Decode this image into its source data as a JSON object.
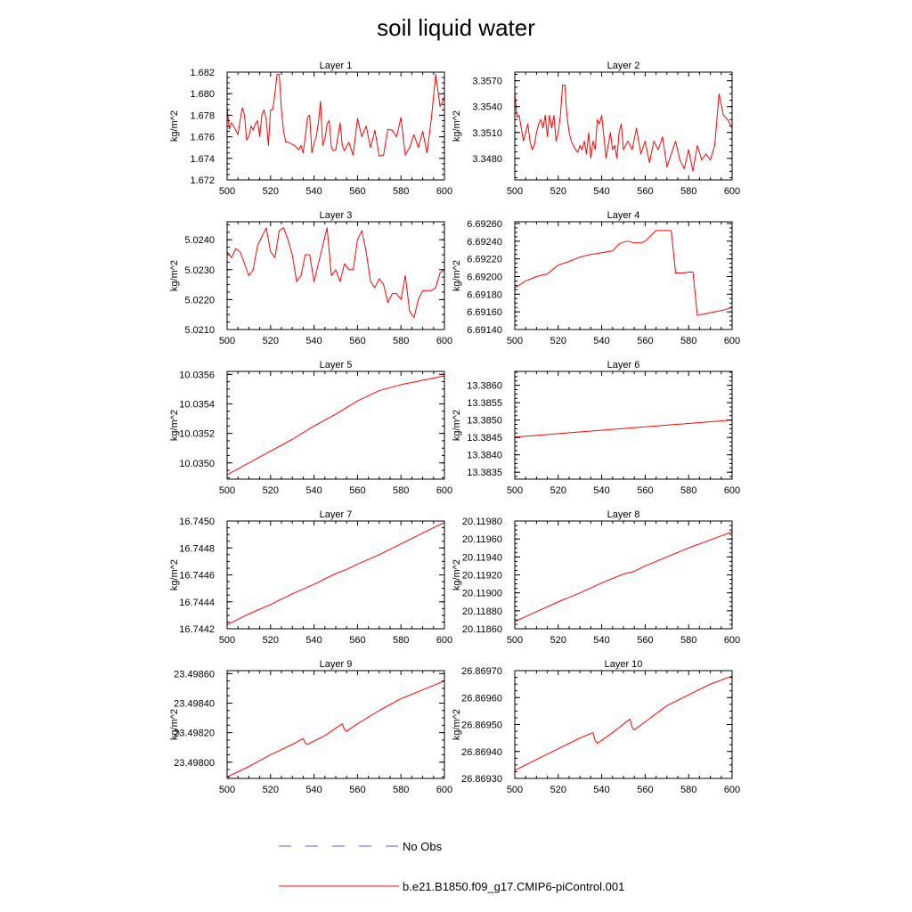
{
  "figure": {
    "title": "soil liquid water"
  },
  "legend": {
    "entries": [
      {
        "label": "No Obs",
        "color": "#5a5aff",
        "dash": true
      },
      {
        "label": "b.e21.B1850.f09_g17.CMIP6-piControl.001",
        "color": "#ff0000",
        "dash": false
      }
    ]
  },
  "chart_data": [
    {
      "type": "line",
      "title": "Layer 1",
      "ylabel": "kg/m^2",
      "xlim": [
        500,
        600
      ],
      "ylim": [
        1.672,
        1.682
      ],
      "xticks": [
        500,
        520,
        540,
        560,
        580,
        600
      ],
      "yticks": [
        "1.672",
        "1.674",
        "1.676",
        "1.678",
        "1.680",
        "1.682"
      ],
      "series": [
        {
          "color": "#ff0000",
          "x": [
            500,
            501,
            502,
            503,
            505,
            506,
            507,
            508,
            509,
            510,
            511,
            512,
            513,
            514,
            515,
            516,
            517,
            518,
            519,
            520,
            521,
            522,
            523,
            524,
            525,
            526,
            527,
            528,
            529,
            530,
            531,
            532,
            533,
            534,
            535,
            536,
            537,
            538,
            539,
            540,
            541,
            542,
            543,
            544,
            545,
            546,
            547,
            548,
            549,
            550,
            552,
            553,
            554,
            556,
            558,
            560,
            562,
            564,
            566,
            568,
            570,
            572,
            574,
            576,
            578,
            580,
            582,
            584,
            586,
            588,
            590,
            592,
            594,
            596,
            598,
            600
          ],
          "y": [
            1.6787,
            1.6767,
            1.6773,
            1.677,
            1.6762,
            1.6775,
            1.6787,
            1.678,
            1.6757,
            1.676,
            1.677,
            1.6766,
            1.6772,
            1.6775,
            1.676,
            1.678,
            1.6785,
            1.6776,
            1.6752,
            1.6785,
            1.6785,
            1.68,
            1.6818,
            1.6818,
            1.6785,
            1.6765,
            1.6755,
            1.6755,
            1.6754,
            1.6753,
            1.6752,
            1.675,
            1.6748,
            1.6752,
            1.6745,
            1.676,
            1.6778,
            1.678,
            1.6745,
            1.6754,
            1.676,
            1.6773,
            1.6793,
            1.6752,
            1.6758,
            1.6772,
            1.6775,
            1.675,
            1.6747,
            1.6748,
            1.6773,
            1.6752,
            1.6747,
            1.6755,
            1.6743,
            1.6777,
            1.676,
            1.677,
            1.675,
            1.6766,
            1.6742,
            1.6743,
            1.6767,
            1.6766,
            1.676,
            1.6778,
            1.6743,
            1.675,
            1.6762,
            1.675,
            1.6765,
            1.6745,
            1.6777,
            1.6818,
            1.6788,
            1.6797
          ]
        }
      ]
    },
    {
      "type": "line",
      "title": "Layer 2",
      "ylabel": "kg/m^2",
      "xlim": [
        500,
        600
      ],
      "ylim": [
        3.3455,
        3.358
      ],
      "xticks": [
        500,
        520,
        540,
        560,
        580,
        600
      ],
      "yticks": [
        "3.3480",
        "3.3510",
        "3.3540",
        "3.3570"
      ],
      "series": [
        {
          "color": "#ff0000",
          "x": [
            500,
            501,
            502,
            503,
            504,
            505,
            506,
            507,
            508,
            509,
            510,
            511,
            512,
            513,
            514,
            515,
            516,
            517,
            518,
            519,
            520,
            521,
            522,
            523,
            524,
            525,
            526,
            527,
            528,
            529,
            530,
            531,
            532,
            533,
            534,
            535,
            536,
            537,
            538,
            539,
            540,
            541,
            542,
            543,
            544,
            545,
            546,
            547,
            548,
            549,
            550,
            552,
            554,
            556,
            558,
            560,
            562,
            564,
            566,
            568,
            570,
            572,
            574,
            576,
            578,
            580,
            582,
            584,
            586,
            588,
            590,
            592,
            594,
            596,
            598,
            600
          ],
          "y": [
            3.3555,
            3.3528,
            3.353,
            3.3515,
            3.35,
            3.351,
            3.352,
            3.35,
            3.349,
            3.3495,
            3.351,
            3.352,
            3.3525,
            3.3515,
            3.353,
            3.3505,
            3.353,
            3.3515,
            3.353,
            3.35,
            3.351,
            3.353,
            3.3565,
            3.3565,
            3.353,
            3.351,
            3.35,
            3.3495,
            3.349,
            3.3487,
            3.3495,
            3.349,
            3.35,
            3.3485,
            3.351,
            3.348,
            3.35,
            3.349,
            3.3525,
            3.352,
            3.353,
            3.3505,
            3.348,
            3.3495,
            3.351,
            3.349,
            3.3495,
            3.348,
            3.351,
            3.352,
            3.349,
            3.35,
            3.349,
            3.3515,
            3.3485,
            3.35,
            3.3475,
            3.35,
            3.349,
            3.3505,
            3.347,
            3.3485,
            3.35,
            3.3478,
            3.3468,
            3.349,
            3.3465,
            3.3495,
            3.3478,
            3.3485,
            3.3478,
            3.3495,
            3.3555,
            3.353,
            3.3525,
            3.3515
          ]
        }
      ]
    },
    {
      "type": "line",
      "title": "Layer 3",
      "ylabel": "kg/m^2",
      "xlim": [
        500,
        600
      ],
      "ylim": [
        5.021,
        5.0246
      ],
      "xticks": [
        500,
        520,
        540,
        560,
        580,
        600
      ],
      "yticks": [
        "5.0210",
        "5.0220",
        "5.0230",
        "5.0240"
      ],
      "series": [
        {
          "color": "#ff0000",
          "x": [
            500,
            502,
            504,
            506,
            508,
            510,
            512,
            514,
            516,
            518,
            520,
            522,
            524,
            526,
            528,
            530,
            532,
            534,
            536,
            538,
            540,
            542,
            544,
            546,
            548,
            550,
            552,
            554,
            556,
            558,
            560,
            562,
            564,
            566,
            568,
            570,
            572,
            574,
            576,
            578,
            580,
            582,
            584,
            586,
            588,
            590,
            592,
            594,
            596,
            598,
            600
          ],
          "y": [
            5.0236,
            5.0234,
            5.0237,
            5.0236,
            5.0232,
            5.0228,
            5.023,
            5.0238,
            5.0241,
            5.0244,
            5.0236,
            5.0234,
            5.0243,
            5.0244,
            5.024,
            5.0235,
            5.0226,
            5.0228,
            5.0235,
            5.0235,
            5.0226,
            5.0232,
            5.0238,
            5.0244,
            5.0228,
            5.023,
            5.0226,
            5.0232,
            5.023,
            5.023,
            5.024,
            5.0243,
            5.0236,
            5.0226,
            5.0224,
            5.0227,
            5.0225,
            5.0219,
            5.0222,
            5.0222,
            5.022,
            5.0228,
            5.0216,
            5.0214,
            5.022,
            5.0223,
            5.0223,
            5.0223,
            5.0224,
            5.0229,
            5.023
          ]
        }
      ]
    },
    {
      "type": "line",
      "title": "Layer 4",
      "ylabel": "kg/m^2",
      "xlim": [
        500,
        600
      ],
      "ylim": [
        6.6914,
        6.69262
      ],
      "xticks": [
        500,
        520,
        540,
        560,
        580,
        600
      ],
      "yticks": [
        "6.69140",
        "6.69160",
        "6.69180",
        "6.69200",
        "6.69220",
        "6.69240",
        "6.69260"
      ],
      "series": [
        {
          "color": "#ff0000",
          "x": [
            500,
            505,
            510,
            515,
            520,
            525,
            530,
            535,
            540,
            545,
            548,
            550,
            552,
            555,
            558,
            560,
            565,
            568,
            570,
            572,
            574,
            576,
            578,
            580,
            582,
            584,
            588,
            592,
            596,
            600
          ],
          "y": [
            6.69187,
            6.69195,
            6.692,
            6.69203,
            6.69213,
            6.69217,
            6.69222,
            6.69225,
            6.69227,
            6.69229,
            6.69237,
            6.69239,
            6.6924,
            6.69238,
            6.69238,
            6.6924,
            6.69252,
            6.69252,
            6.69252,
            6.69252,
            6.69204,
            6.69204,
            6.69204,
            6.69205,
            6.69205,
            6.69156,
            6.69158,
            6.6916,
            6.69162,
            6.69165
          ]
        }
      ]
    },
    {
      "type": "line",
      "title": "Layer 5",
      "ylabel": "kg/m^2",
      "xlim": [
        500,
        600
      ],
      "ylim": [
        10.03489,
        10.03562
      ],
      "xticks": [
        500,
        520,
        540,
        560,
        580,
        600
      ],
      "yticks": [
        "10.0350",
        "10.0352",
        "10.0354",
        "10.0356"
      ],
      "series": [
        {
          "color": "#ff0000",
          "x": [
            500,
            510,
            520,
            530,
            540,
            550,
            560,
            570,
            580,
            590,
            600
          ],
          "y": [
            10.03492,
            10.035,
            10.03508,
            10.03516,
            10.03525,
            10.03533,
            10.03542,
            10.03549,
            10.03553,
            10.03556,
            10.03559
          ]
        }
      ]
    },
    {
      "type": "line",
      "title": "Layer 6",
      "ylabel": "kg/m^2",
      "xlim": [
        500,
        600
      ],
      "ylim": [
        13.3833,
        13.3864
      ],
      "xticks": [
        500,
        520,
        540,
        560,
        580,
        600
      ],
      "yticks": [
        "13.3835",
        "13.3840",
        "13.3845",
        "13.3850",
        "13.3855",
        "13.3860"
      ],
      "series": [
        {
          "color": "#ff0000",
          "x": [
            500,
            600
          ],
          "y": [
            13.38451,
            13.385
          ]
        }
      ]
    },
    {
      "type": "line",
      "title": "Layer 7",
      "ylabel": "kg/m^2",
      "xlim": [
        500,
        600
      ],
      "ylim": [
        16.7442,
        16.745
      ],
      "xticks": [
        500,
        520,
        540,
        560,
        580,
        600
      ],
      "yticks": [
        "16.7442",
        "16.7444",
        "16.7446",
        "16.7448",
        "16.7450"
      ],
      "series": [
        {
          "color": "#ff0000",
          "x": [
            500,
            510,
            520,
            530,
            540,
            550,
            555,
            560,
            570,
            580,
            590,
            600
          ],
          "y": [
            16.74423,
            16.74431,
            16.74438,
            16.74446,
            16.74453,
            16.74461,
            16.74464,
            16.74468,
            16.74475,
            16.74483,
            16.74491,
            16.74499
          ]
        }
      ]
    },
    {
      "type": "line",
      "title": "Layer 8",
      "ylabel": "kg/m^2",
      "xlim": [
        500,
        600
      ],
      "ylim": [
        20.1186,
        20.1198
      ],
      "xticks": [
        500,
        520,
        540,
        560,
        580,
        600
      ],
      "yticks": [
        "20.11860",
        "20.11880",
        "20.11900",
        "20.11920",
        "20.11940",
        "20.11960",
        "20.11980"
      ],
      "series": [
        {
          "color": "#ff0000",
          "x": [
            500,
            510,
            520,
            530,
            540,
            550,
            555,
            560,
            570,
            580,
            590,
            600
          ],
          "y": [
            20.11868,
            20.11879,
            20.1189,
            20.119,
            20.11911,
            20.11921,
            20.11924,
            20.1193,
            20.1194,
            20.1195,
            20.11959,
            20.11968
          ]
        }
      ]
    },
    {
      "type": "line",
      "title": "Layer 9",
      "ylabel": "kg/m^2",
      "xlim": [
        500,
        600
      ],
      "ylim": [
        23.49789,
        23.49862
      ],
      "xticks": [
        500,
        520,
        540,
        560,
        580,
        600
      ],
      "yticks": [
        "23.49800",
        "23.49820",
        "23.49840",
        "23.49860"
      ],
      "series": [
        {
          "color": "#ff0000",
          "x": [
            500,
            510,
            520,
            530,
            535,
            536,
            537,
            545,
            553,
            554,
            555,
            560,
            570,
            580,
            590,
            600
          ],
          "y": [
            23.4979,
            23.49797,
            23.49805,
            23.49812,
            23.49816,
            23.49813,
            23.49812,
            23.49818,
            23.49826,
            23.49822,
            23.49821,
            23.49826,
            23.49835,
            23.49843,
            23.49849,
            23.49855
          ]
        }
      ]
    },
    {
      "type": "line",
      "title": "Layer 10",
      "ylabel": "kg/m^2",
      "xlim": [
        500,
        600
      ],
      "ylim": [
        26.8693,
        26.8697
      ],
      "xticks": [
        500,
        520,
        540,
        560,
        580,
        600
      ],
      "yticks": [
        "26.86930",
        "26.86940",
        "26.86950",
        "26.86960",
        "26.86970"
      ],
      "series": [
        {
          "color": "#ff0000",
          "x": [
            500,
            510,
            520,
            530,
            536,
            537,
            538,
            545,
            553,
            554,
            555,
            560,
            570,
            580,
            590,
            600
          ],
          "y": [
            26.86933,
            26.86937,
            26.86941,
            26.86945,
            26.86947,
            26.86944,
            26.86943,
            26.86947,
            26.86952,
            26.86949,
            26.86948,
            26.86951,
            26.86957,
            26.86961,
            26.86965,
            26.86968
          ]
        }
      ]
    }
  ]
}
